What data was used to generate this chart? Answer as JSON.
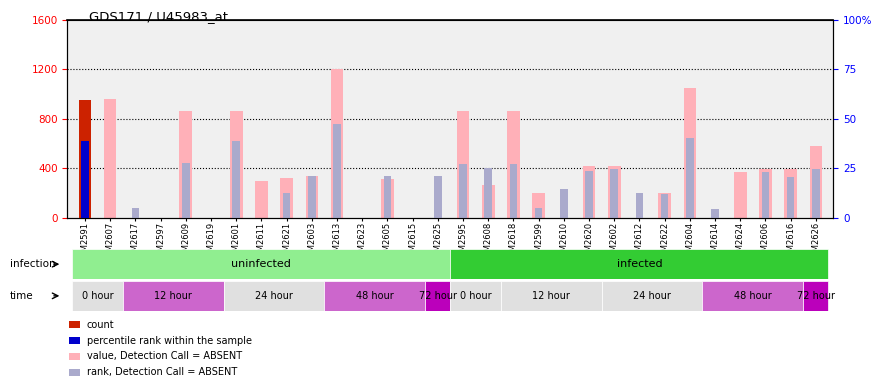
{
  "title": "GDS171 / U45983_at",
  "samples": [
    "GSM2591",
    "GSM2607",
    "GSM2617",
    "GSM2597",
    "GSM2609",
    "GSM2619",
    "GSM2601",
    "GSM2611",
    "GSM2621",
    "GSM2603",
    "GSM2613",
    "GSM2623",
    "GSM2605",
    "GSM2615",
    "GSM2625",
    "GSM2595",
    "GSM2608",
    "GSM2618",
    "GSM2599",
    "GSM2610",
    "GSM2620",
    "GSM2602",
    "GSM2612",
    "GSM2622",
    "GSM2604",
    "GSM2614",
    "GSM2624",
    "GSM2606",
    "GSM2616",
    "GSM2626"
  ],
  "pink_values": [
    0,
    960,
    0,
    0,
    860,
    0,
    860,
    300,
    320,
    340,
    1200,
    0,
    310,
    0,
    0,
    860,
    260,
    860,
    200,
    0,
    420,
    420,
    0,
    200,
    1050,
    0,
    370,
    390,
    390,
    580
  ],
  "blue_rank_values": [
    0,
    0,
    80,
    0,
    440,
    0,
    620,
    0,
    200,
    340,
    760,
    0,
    340,
    0,
    340,
    430,
    400,
    430,
    80,
    230,
    380,
    390,
    200,
    190,
    640,
    70,
    0,
    370,
    330,
    390
  ],
  "count_bar_val": 950,
  "pct_rank_bar_val": 620,
  "ylim_left": [
    0,
    1600
  ],
  "ylim_right": [
    0,
    100
  ],
  "yticks_left": [
    0,
    400,
    800,
    1200,
    1600
  ],
  "yticks_right_vals": [
    0,
    25,
    50,
    75,
    100
  ],
  "yticks_right_labels": [
    "0",
    "25",
    "50",
    "75",
    "100%"
  ],
  "pink_color": "#FFB0B8",
  "blue_rank_color": "#AAAACC",
  "red_color": "#CC2200",
  "blue_color": "#0000CC",
  "uninfected_color": "#90EE90",
  "infected_color": "#33CC33",
  "infection_groups": [
    {
      "label": "uninfected",
      "start": 0,
      "end": 14
    },
    {
      "label": "infected",
      "start": 15,
      "end": 29
    }
  ],
  "time_groups": [
    {
      "label": "0 hour",
      "start": 0,
      "end": 1,
      "color": "#E0E0E0"
    },
    {
      "label": "12 hour",
      "start": 2,
      "end": 5,
      "color": "#CC66CC"
    },
    {
      "label": "24 hour",
      "start": 6,
      "end": 9,
      "color": "#E0E0E0"
    },
    {
      "label": "48 hour",
      "start": 10,
      "end": 13,
      "color": "#CC66CC"
    },
    {
      "label": "72 hour",
      "start": 14,
      "end": 14,
      "color": "#BB00BB"
    },
    {
      "label": "0 hour",
      "start": 15,
      "end": 16,
      "color": "#E0E0E0"
    },
    {
      "label": "12 hour",
      "start": 17,
      "end": 20,
      "color": "#E0E0E0"
    },
    {
      "label": "24 hour",
      "start": 21,
      "end": 24,
      "color": "#E0E0E0"
    },
    {
      "label": "48 hour",
      "start": 25,
      "end": 28,
      "color": "#CC66CC"
    },
    {
      "label": "72 hour",
      "start": 29,
      "end": 29,
      "color": "#BB00BB"
    }
  ],
  "legend_items": [
    {
      "label": "count",
      "color": "#CC2200"
    },
    {
      "label": "percentile rank within the sample",
      "color": "#0000CC"
    },
    {
      "label": "value, Detection Call = ABSENT",
      "color": "#FFB0B8"
    },
    {
      "label": "rank, Detection Call = ABSENT",
      "color": "#AAAACC"
    }
  ],
  "bg_color": "#F0F0F0"
}
